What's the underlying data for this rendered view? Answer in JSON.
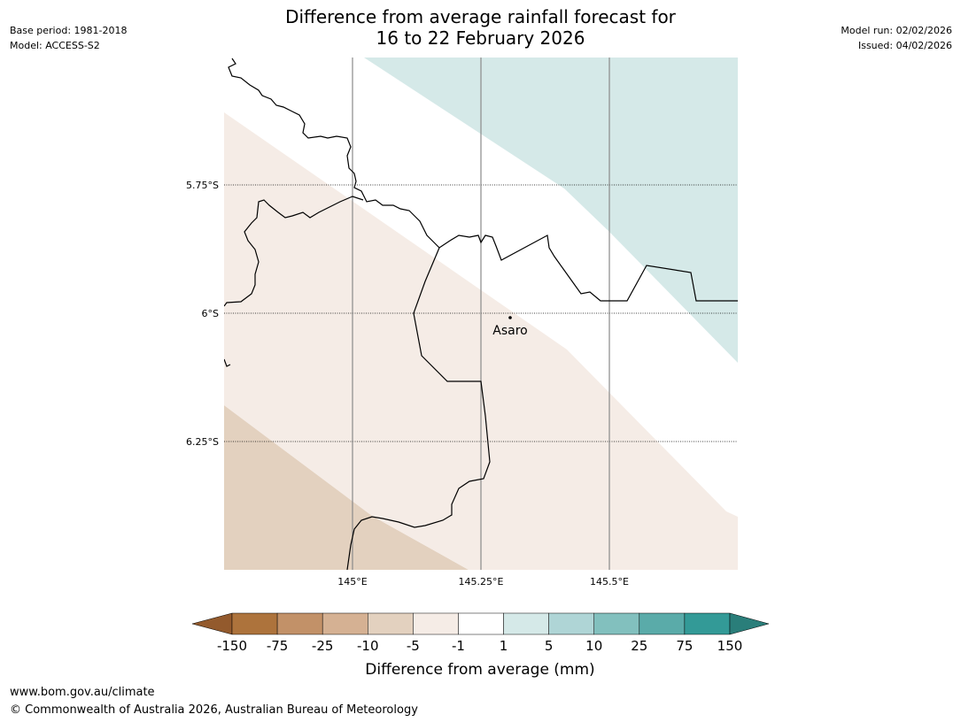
{
  "header": {
    "title_line1": "Difference from average rainfall forecast for",
    "title_line2": "16 to 22 February 2026",
    "base_period": "Base period: 1981-2018",
    "model": "Model: ACCESS-S2",
    "model_run": "Model run: 02/02/2026",
    "issued": "Issued: 04/02/2026"
  },
  "map": {
    "lat_labels": [
      "5.75°S",
      "6°S",
      "6.25°S"
    ],
    "lon_labels": [
      "145°E",
      "145.25°E",
      "145.5°E"
    ],
    "place": {
      "name": "Asaro"
    },
    "band_colors": {
      "light_brown": "#e3d1bf",
      "very_light_brown": "#f5ece6",
      "white": "#ffffff",
      "light_teal": "#d5e9e8"
    }
  },
  "legend": {
    "title": "Difference from average (mm)",
    "ticks": [
      "-150",
      "-75",
      "-25",
      "-10",
      "-5",
      "-1",
      "1",
      "5",
      "10",
      "25",
      "75",
      "150"
    ],
    "colors": [
      "#935a2d",
      "#ad733c",
      "#c29168",
      "#d5b193",
      "#e3d1bf",
      "#f5ece6",
      "#ffffff",
      "#d5e9e8",
      "#afd5d6",
      "#82c0be",
      "#5aaba9",
      "#339a97",
      "#2a7e7a"
    ]
  },
  "footer": {
    "url": "www.bom.gov.au/climate",
    "copyright": "© Commonwealth of Australia 2026, Australian Bureau of Meteorology"
  }
}
